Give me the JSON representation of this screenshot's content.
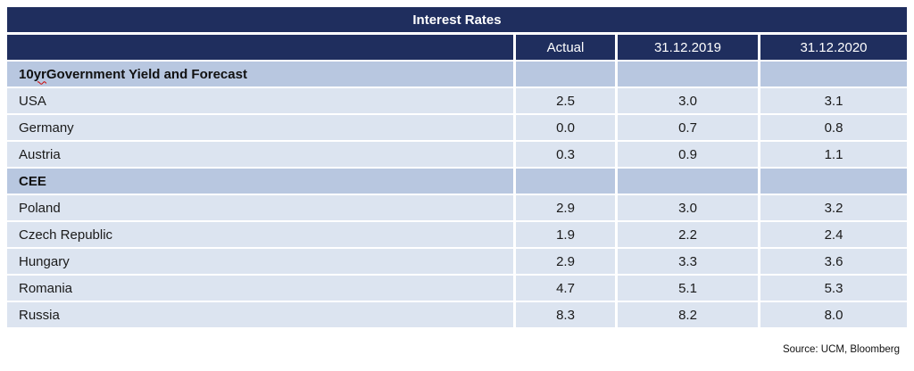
{
  "page": {
    "title_bar": "Interest Rates",
    "source_note": "Source: UCM, Bloomberg"
  },
  "table": {
    "columns": {
      "region": "",
      "actual": "Actual",
      "date_2019": "31.12.2019",
      "date_2020": "31.12.2020"
    },
    "section_gov": {
      "prefix": "10 ",
      "typo_word": "yr",
      "suffix": " Government Yield and Forecast"
    },
    "section_cee": {
      "label": "CEE"
    },
    "rows": [
      {
        "label": "USA",
        "actual": "2.5",
        "v2019": "3.0",
        "v2020": "3.1"
      },
      {
        "label": "Germany",
        "actual": "0.0",
        "v2019": "0.7",
        "v2020": "0.8"
      },
      {
        "label": "Austria",
        "actual": "0.3",
        "v2019": "0.9",
        "v2020": "1.1"
      },
      {
        "label": "Poland",
        "actual": "2.9",
        "v2019": "3.0",
        "v2020": "3.2"
      },
      {
        "label": "Czech Republic",
        "actual": "1.9",
        "v2019": "2.2",
        "v2020": "2.4"
      },
      {
        "label": "Hungary",
        "actual": "2.9",
        "v2019": "3.3",
        "v2020": "3.6"
      },
      {
        "label": "Romania",
        "actual": "4.7",
        "v2019": "5.1",
        "v2020": "5.3"
      },
      {
        "label": "Russia",
        "actual": "8.3",
        "v2019": "8.2",
        "v2020": "8.0"
      }
    ]
  },
  "colors": {
    "navy": "#1F2E5E",
    "row_bg": "#DCE4F0",
    "section_bg": "#B8C7E0",
    "header_text": "#FFFFFF",
    "body_text": "#1A1A1A",
    "typo_underline": "#CC0000"
  },
  "chart_data": {
    "type": "table",
    "title": "Interest Rates",
    "columns": [
      "",
      "Actual",
      "31.12.2019",
      "31.12.2020"
    ],
    "sections": [
      {
        "section": "10 yr Government Yield and Forecast",
        "rows": [
          [
            "USA",
            2.5,
            3.0,
            3.1
          ],
          [
            "Germany",
            0.0,
            0.7,
            0.8
          ],
          [
            "Austria",
            0.3,
            0.9,
            1.1
          ]
        ]
      },
      {
        "section": "CEE",
        "rows": [
          [
            "Poland",
            2.9,
            3.0,
            3.2
          ],
          [
            "Czech Republic",
            1.9,
            2.2,
            2.4
          ],
          [
            "Hungary",
            2.9,
            3.3,
            3.6
          ],
          [
            "Romania",
            4.7,
            5.1,
            5.3
          ],
          [
            "Russia",
            8.3,
            8.2,
            8.0
          ]
        ]
      }
    ],
    "source": "Source: UCM, Bloomberg"
  }
}
